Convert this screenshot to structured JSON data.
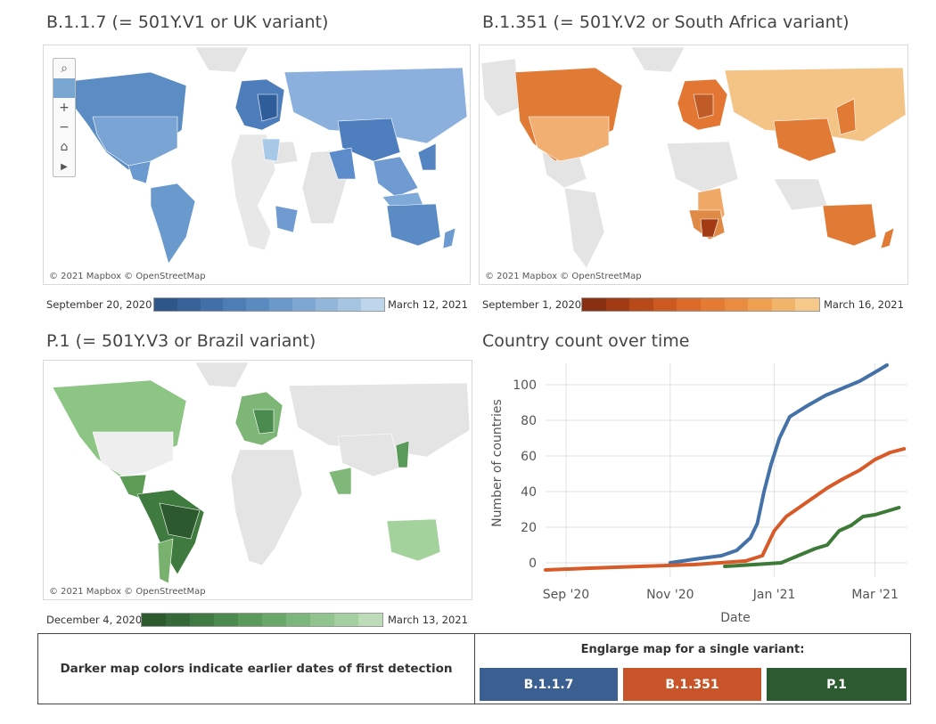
{
  "maps": [
    {
      "title": "B.1.1.7 (= 501Y.V1 or UK variant)",
      "credit": "© 2021 Mapbox © OpenStreetMap",
      "legend_start": "September 20, 2020",
      "legend_end": "March 12, 2021",
      "ramp": [
        "#2e5688",
        "#37639a",
        "#4170a8",
        "#4c7db4",
        "#5a8bc0",
        "#6a98c9",
        "#7da7d2",
        "#91b6da",
        "#a6c5e2",
        "#bdd6eb"
      ]
    },
    {
      "title": "B.1.351 (= 501Y.V2 or South Africa variant)",
      "credit": "© 2021 Mapbox © OpenStreetMap",
      "legend_start": "September 1, 2020",
      "legend_end": "March 16, 2021",
      "ramp": [
        "#8a3012",
        "#a23b14",
        "#b84a1a",
        "#cc5a20",
        "#db6a28",
        "#e57b32",
        "#ea8c3f",
        "#eea050",
        "#f2b468",
        "#f6c88a"
      ]
    },
    {
      "title": "P.1 (= 501Y.V3 or Brazil variant)",
      "credit": "© 2021 Mapbox © OpenStreetMap",
      "legend_start": "December 4, 2020",
      "legend_end": "March 13, 2021",
      "ramp": [
        "#2c5a2e",
        "#35693a",
        "#3f7a44",
        "#4b8b4f",
        "#5a9a5b",
        "#6aa86a",
        "#7db67b",
        "#90c38d",
        "#a5cfa1",
        "#bcdcb7"
      ]
    }
  ],
  "map_tools": {
    "search_icon": "magnifier-icon",
    "zoom_in": "+",
    "zoom_out": "−",
    "home_icon": "home-icon",
    "play_icon": "play-icon"
  },
  "chart_title": "Country count over time",
  "chart_data": {
    "type": "line",
    "title": "Country count over time",
    "xlabel": "Date",
    "ylabel": "Number of countries",
    "x_ticks": [
      "Sep '20",
      "Nov '20",
      "Jan '21",
      "Mar '21"
    ],
    "x_tick_dates": [
      "2020-09-01",
      "2020-11-01",
      "2021-01-01",
      "2021-03-01"
    ],
    "xlim": [
      "2020-08-20",
      "2021-03-20"
    ],
    "y_ticks": [
      0,
      20,
      40,
      60,
      80,
      100
    ],
    "ylim": [
      -8,
      112
    ],
    "grid": true,
    "series": [
      {
        "name": "B.1.1.7",
        "color": "#4472a8",
        "points": [
          [
            "2020-11-01",
            0
          ],
          [
            "2020-11-15",
            2
          ],
          [
            "2020-12-01",
            4
          ],
          [
            "2020-12-10",
            7
          ],
          [
            "2020-12-18",
            14
          ],
          [
            "2020-12-22",
            22
          ],
          [
            "2020-12-26",
            40
          ],
          [
            "2020-12-30",
            55
          ],
          [
            "2021-01-04",
            70
          ],
          [
            "2021-01-10",
            82
          ],
          [
            "2021-01-20",
            88
          ],
          [
            "2021-01-31",
            94
          ],
          [
            "2021-02-10",
            98
          ],
          [
            "2021-02-20",
            102
          ],
          [
            "2021-03-01",
            107
          ],
          [
            "2021-03-08",
            111
          ]
        ]
      },
      {
        "name": "B.1.351",
        "color": "#d85a28",
        "points": [
          [
            "2020-08-20",
            -4
          ],
          [
            "2020-09-15",
            -3
          ],
          [
            "2020-10-15",
            -2
          ],
          [
            "2020-11-15",
            -1
          ],
          [
            "2020-12-15",
            1
          ],
          [
            "2020-12-25",
            4
          ],
          [
            "2021-01-01",
            18
          ],
          [
            "2021-01-08",
            26
          ],
          [
            "2021-01-20",
            34
          ],
          [
            "2021-02-01",
            42
          ],
          [
            "2021-02-10",
            47
          ],
          [
            "2021-02-20",
            52
          ],
          [
            "2021-03-01",
            58
          ],
          [
            "2021-03-10",
            62
          ],
          [
            "2021-03-18",
            64
          ]
        ]
      },
      {
        "name": "P.1",
        "color": "#3d7a38",
        "points": [
          [
            "2020-12-03",
            -2
          ],
          [
            "2020-12-20",
            -1
          ],
          [
            "2021-01-05",
            0
          ],
          [
            "2021-01-15",
            4
          ],
          [
            "2021-01-25",
            8
          ],
          [
            "2021-02-01",
            10
          ],
          [
            "2021-02-08",
            18
          ],
          [
            "2021-02-15",
            21
          ],
          [
            "2021-02-22",
            26
          ],
          [
            "2021-03-01",
            27
          ],
          [
            "2021-03-08",
            29
          ],
          [
            "2021-03-15",
            31
          ]
        ]
      }
    ]
  },
  "footer": {
    "note": "Darker map colors indicate earlier dates of first detection",
    "enlarge_title": "Englarge map for a single variant:",
    "buttons": [
      {
        "label": "B.1.1.7",
        "color": "#3b5f91"
      },
      {
        "label": "B.1.351",
        "color": "#c8552a"
      },
      {
        "label": "P.1",
        "color": "#2c5b30"
      }
    ]
  }
}
